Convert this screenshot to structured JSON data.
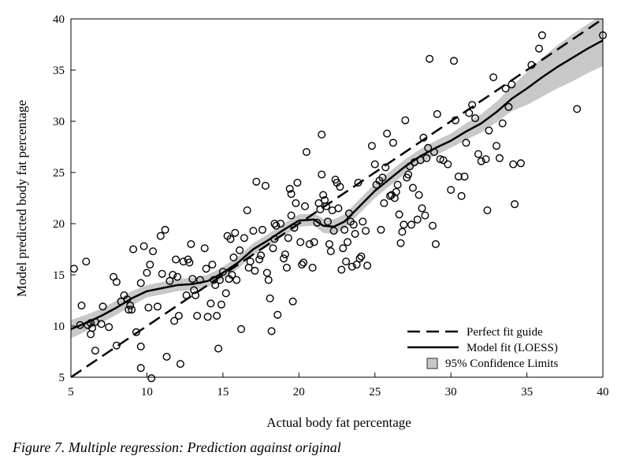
{
  "caption": "Figure 7. Multiple regression: Prediction against original",
  "chart_data": {
    "type": "scatter",
    "xlabel": "Actual body fat percentage",
    "ylabel": "Model predicted body fat percentage",
    "xlim": [
      5,
      40
    ],
    "ylim": [
      5,
      40
    ],
    "xticks": [
      5,
      10,
      15,
      20,
      25,
      30,
      35,
      40
    ],
    "yticks": [
      5,
      10,
      15,
      20,
      25,
      30,
      35,
      40
    ],
    "grid": false,
    "legend_position": "bottom-right",
    "legend": {
      "perfect_fit": "Perfect fit guide",
      "model_fit": "Model fit (LOESS)",
      "confidence": "95% Confidence Limits"
    },
    "colors": {
      "band": "#c8c8c8",
      "line": "#000000",
      "marker": "#000000"
    },
    "points": [
      [
        5.2,
        15.6
      ],
      [
        5.6,
        10.1
      ],
      [
        5.7,
        12.0
      ],
      [
        6.0,
        16.3
      ],
      [
        6.1,
        10.1
      ],
      [
        6.3,
        9.2
      ],
      [
        6.4,
        9.8
      ],
      [
        6.6,
        10.4
      ],
      [
        6.6,
        7.6
      ],
      [
        6.3,
        10.3
      ],
      [
        7.0,
        10.2
      ],
      [
        7.1,
        11.9
      ],
      [
        7.5,
        9.9
      ],
      [
        7.8,
        14.8
      ],
      [
        8.0,
        8.1
      ],
      [
        8.0,
        14.3
      ],
      [
        8.3,
        12.4
      ],
      [
        8.5,
        13.0
      ],
      [
        8.7,
        12.6
      ],
      [
        8.8,
        11.6
      ],
      [
        8.9,
        12.0
      ],
      [
        9.0,
        11.6
      ],
      [
        9.1,
        17.5
      ],
      [
        9.3,
        9.4
      ],
      [
        9.6,
        14.2
      ],
      [
        9.6,
        8.0
      ],
      [
        9.6,
        5.9
      ],
      [
        9.8,
        17.8
      ],
      [
        10.0,
        15.2
      ],
      [
        10.1,
        11.8
      ],
      [
        10.2,
        16.0
      ],
      [
        10.3,
        4.9
      ],
      [
        10.4,
        17.3
      ],
      [
        10.7,
        11.9
      ],
      [
        10.9,
        18.8
      ],
      [
        11.0,
        15.1
      ],
      [
        11.2,
        19.4
      ],
      [
        11.3,
        7.0
      ],
      [
        11.5,
        14.4
      ],
      [
        11.7,
        15.0
      ],
      [
        11.8,
        10.5
      ],
      [
        11.9,
        16.5
      ],
      [
        12.0,
        14.8
      ],
      [
        12.1,
        11.0
      ],
      [
        12.2,
        6.3
      ],
      [
        12.4,
        16.3
      ],
      [
        12.6,
        13.0
      ],
      [
        12.7,
        16.5
      ],
      [
        12.8,
        16.2
      ],
      [
        12.9,
        18.0
      ],
      [
        13.0,
        14.6
      ],
      [
        13.1,
        13.5
      ],
      [
        13.2,
        13.0
      ],
      [
        13.3,
        11.0
      ],
      [
        13.5,
        14.5
      ],
      [
        13.8,
        17.6
      ],
      [
        13.9,
        15.6
      ],
      [
        14.0,
        10.9
      ],
      [
        14.2,
        12.2
      ],
      [
        14.3,
        16.0
      ],
      [
        14.4,
        14.5
      ],
      [
        14.5,
        14.0
      ],
      [
        14.6,
        11.0
      ],
      [
        14.7,
        7.8
      ],
      [
        14.8,
        14.5
      ],
      [
        14.9,
        12.1
      ],
      [
        15.0,
        15.3
      ],
      [
        15.2,
        13.2
      ],
      [
        15.3,
        18.8
      ],
      [
        15.4,
        14.6
      ],
      [
        15.5,
        18.5
      ],
      [
        15.6,
        15.0
      ],
      [
        15.7,
        16.7
      ],
      [
        15.8,
        19.1
      ],
      [
        15.9,
        14.5
      ],
      [
        16.1,
        17.4
      ],
      [
        16.2,
        9.7
      ],
      [
        16.4,
        18.6
      ],
      [
        16.6,
        21.3
      ],
      [
        16.7,
        15.7
      ],
      [
        16.8,
        16.3
      ],
      [
        17.0,
        19.3
      ],
      [
        17.1,
        15.4
      ],
      [
        17.2,
        24.1
      ],
      [
        17.4,
        16.5
      ],
      [
        17.5,
        16.9
      ],
      [
        17.6,
        19.4
      ],
      [
        17.8,
        23.7
      ],
      [
        17.9,
        15.2
      ],
      [
        18.0,
        14.5
      ],
      [
        18.1,
        12.7
      ],
      [
        18.2,
        9.5
      ],
      [
        18.3,
        17.6
      ],
      [
        18.4,
        18.5
      ],
      [
        18.4,
        20.0
      ],
      [
        18.5,
        19.8
      ],
      [
        18.6,
        11.1
      ],
      [
        18.8,
        20.0
      ],
      [
        19.0,
        16.6
      ],
      [
        19.1,
        17.0
      ],
      [
        19.2,
        15.7
      ],
      [
        19.3,
        18.6
      ],
      [
        19.4,
        23.4
      ],
      [
        19.5,
        20.8
      ],
      [
        19.5,
        22.9
      ],
      [
        19.6,
        12.4
      ],
      [
        19.7,
        19.6
      ],
      [
        19.8,
        22.0
      ],
      [
        19.9,
        24.0
      ],
      [
        20.1,
        18.2
      ],
      [
        20.2,
        16.0
      ],
      [
        20.3,
        16.2
      ],
      [
        20.4,
        21.7
      ],
      [
        20.5,
        27.0
      ],
      [
        20.7,
        18.0
      ],
      [
        20.9,
        15.7
      ],
      [
        21.0,
        18.2
      ],
      [
        21.2,
        20.1
      ],
      [
        21.3,
        22.0
      ],
      [
        21.4,
        21.4
      ],
      [
        21.5,
        24.8
      ],
      [
        21.5,
        28.7
      ],
      [
        21.6,
        22.8
      ],
      [
        21.7,
        22.3
      ],
      [
        21.8,
        21.7
      ],
      [
        21.9,
        20.2
      ],
      [
        22.0,
        18.0
      ],
      [
        22.1,
        17.3
      ],
      [
        22.2,
        21.3
      ],
      [
        22.3,
        19.3
      ],
      [
        22.4,
        24.3
      ],
      [
        22.5,
        24.0
      ],
      [
        22.6,
        21.5
      ],
      [
        22.7,
        23.6
      ],
      [
        22.8,
        15.5
      ],
      [
        22.9,
        17.6
      ],
      [
        23.0,
        19.4
      ],
      [
        23.1,
        16.3
      ],
      [
        23.2,
        18.2
      ],
      [
        23.3,
        21.0
      ],
      [
        23.4,
        20.2
      ],
      [
        23.5,
        15.8
      ],
      [
        23.6,
        19.9
      ],
      [
        23.7,
        19.0
      ],
      [
        23.8,
        16.0
      ],
      [
        23.9,
        24.0
      ],
      [
        24.0,
        16.6
      ],
      [
        24.1,
        16.8
      ],
      [
        24.2,
        20.2
      ],
      [
        24.4,
        19.3
      ],
      [
        24.5,
        15.9
      ],
      [
        24.8,
        27.6
      ],
      [
        25.0,
        25.8
      ],
      [
        25.1,
        23.8
      ],
      [
        25.3,
        24.2
      ],
      [
        25.4,
        19.4
      ],
      [
        25.5,
        24.5
      ],
      [
        25.6,
        22.0
      ],
      [
        25.7,
        25.5
      ],
      [
        25.8,
        28.8
      ],
      [
        26.0,
        22.7
      ],
      [
        26.1,
        22.8
      ],
      [
        26.2,
        27.9
      ],
      [
        26.3,
        22.5
      ],
      [
        26.4,
        23.1
      ],
      [
        26.5,
        23.8
      ],
      [
        26.6,
        20.9
      ],
      [
        26.7,
        18.1
      ],
      [
        26.8,
        19.2
      ],
      [
        26.9,
        19.9
      ],
      [
        27.0,
        30.1
      ],
      [
        27.1,
        24.5
      ],
      [
        27.2,
        24.8
      ],
      [
        27.3,
        25.6
      ],
      [
        27.4,
        19.9
      ],
      [
        27.5,
        23.5
      ],
      [
        27.6,
        26.0
      ],
      [
        27.8,
        20.4
      ],
      [
        27.9,
        22.8
      ],
      [
        28.0,
        26.2
      ],
      [
        28.1,
        21.5
      ],
      [
        28.2,
        28.4
      ],
      [
        28.3,
        20.8
      ],
      [
        28.4,
        26.4
      ],
      [
        28.5,
        27.4
      ],
      [
        28.6,
        36.1
      ],
      [
        28.8,
        19.8
      ],
      [
        28.9,
        27.0
      ],
      [
        29.0,
        18.0
      ],
      [
        29.1,
        30.7
      ],
      [
        29.3,
        26.3
      ],
      [
        29.5,
        26.2
      ],
      [
        29.8,
        25.8
      ],
      [
        30.0,
        23.3
      ],
      [
        30.2,
        35.9
      ],
      [
        30.3,
        30.1
      ],
      [
        30.5,
        24.6
      ],
      [
        30.7,
        22.7
      ],
      [
        30.9,
        24.6
      ],
      [
        31.0,
        27.9
      ],
      [
        31.2,
        30.8
      ],
      [
        31.4,
        31.6
      ],
      [
        31.6,
        30.3
      ],
      [
        31.8,
        26.8
      ],
      [
        32.0,
        26.1
      ],
      [
        32.3,
        26.3
      ],
      [
        32.4,
        21.3
      ],
      [
        32.5,
        29.1
      ],
      [
        32.8,
        34.3
      ],
      [
        33.0,
        27.6
      ],
      [
        33.2,
        26.4
      ],
      [
        33.4,
        29.8
      ],
      [
        33.6,
        33.2
      ],
      [
        33.8,
        31.4
      ],
      [
        34.0,
        33.6
      ],
      [
        34.1,
        25.8
      ],
      [
        34.2,
        21.9
      ],
      [
        34.6,
        25.9
      ],
      [
        35.3,
        35.5
      ],
      [
        35.8,
        37.1
      ],
      [
        36.0,
        38.4
      ],
      [
        38.3,
        31.2
      ],
      [
        40.0,
        38.4
      ]
    ],
    "loess": [
      [
        5.0,
        9.7
      ],
      [
        6.0,
        10.3
      ],
      [
        7.0,
        11.0
      ],
      [
        8.0,
        11.8
      ],
      [
        9.0,
        12.7
      ],
      [
        10.0,
        13.4
      ],
      [
        11.0,
        13.7
      ],
      [
        12.0,
        14.0
      ],
      [
        13.0,
        14.1
      ],
      [
        14.0,
        14.4
      ],
      [
        15.0,
        15.2
      ],
      [
        16.0,
        16.2
      ],
      [
        17.0,
        17.5
      ],
      [
        18.0,
        18.4
      ],
      [
        19.0,
        19.4
      ],
      [
        20.0,
        20.3
      ],
      [
        21.0,
        20.4
      ],
      [
        21.6,
        19.8
      ],
      [
        22.3,
        19.7
      ],
      [
        23.0,
        20.2
      ],
      [
        24.0,
        21.7
      ],
      [
        25.0,
        23.2
      ],
      [
        26.0,
        24.4
      ],
      [
        27.0,
        25.6
      ],
      [
        28.0,
        26.6
      ],
      [
        29.0,
        27.4
      ],
      [
        30.0,
        28.1
      ],
      [
        31.0,
        29.0
      ],
      [
        32.0,
        29.8
      ],
      [
        33.0,
        30.9
      ],
      [
        34.0,
        32.2
      ],
      [
        35.0,
        33.2
      ],
      [
        36.0,
        34.3
      ],
      [
        37.0,
        35.3
      ],
      [
        38.0,
        36.2
      ],
      [
        39.0,
        37.1
      ],
      [
        40.0,
        37.9
      ]
    ],
    "band_upper": [
      [
        5.0,
        10.6
      ],
      [
        6.0,
        11.1
      ],
      [
        7.0,
        11.7
      ],
      [
        8.0,
        12.5
      ],
      [
        9.0,
        13.4
      ],
      [
        10.0,
        14.0
      ],
      [
        11.0,
        14.3
      ],
      [
        12.0,
        14.6
      ],
      [
        13.0,
        14.7
      ],
      [
        14.0,
        15.0
      ],
      [
        15.0,
        15.8
      ],
      [
        16.0,
        16.8
      ],
      [
        17.0,
        18.1
      ],
      [
        18.0,
        19.0
      ],
      [
        19.0,
        20.0
      ],
      [
        20.0,
        20.9
      ],
      [
        21.0,
        21.0
      ],
      [
        21.6,
        20.5
      ],
      [
        22.3,
        20.4
      ],
      [
        23.0,
        20.9
      ],
      [
        24.0,
        22.4
      ],
      [
        25.0,
        23.9
      ],
      [
        26.0,
        25.1
      ],
      [
        27.0,
        26.3
      ],
      [
        28.0,
        27.3
      ],
      [
        29.0,
        28.1
      ],
      [
        30.0,
        28.8
      ],
      [
        31.0,
        29.8
      ],
      [
        32.0,
        30.7
      ],
      [
        33.0,
        31.9
      ],
      [
        34.0,
        33.4
      ],
      [
        35.0,
        34.8
      ],
      [
        36.0,
        36.2
      ],
      [
        37.0,
        37.4
      ],
      [
        38.0,
        38.5
      ],
      [
        39.0,
        39.5
      ],
      [
        40.0,
        40.4
      ]
    ],
    "band_lower": [
      [
        5.0,
        8.8
      ],
      [
        6.0,
        9.5
      ],
      [
        7.0,
        10.3
      ],
      [
        8.0,
        11.1
      ],
      [
        9.0,
        12.0
      ],
      [
        10.0,
        12.8
      ],
      [
        11.0,
        13.1
      ],
      [
        12.0,
        13.4
      ],
      [
        13.0,
        13.5
      ],
      [
        14.0,
        13.8
      ],
      [
        15.0,
        14.6
      ],
      [
        16.0,
        15.6
      ],
      [
        17.0,
        16.9
      ],
      [
        18.0,
        17.8
      ],
      [
        19.0,
        18.8
      ],
      [
        20.0,
        19.7
      ],
      [
        21.0,
        19.8
      ],
      [
        21.6,
        19.1
      ],
      [
        22.3,
        19.0
      ],
      [
        23.0,
        19.5
      ],
      [
        24.0,
        21.0
      ],
      [
        25.0,
        22.5
      ],
      [
        26.0,
        23.7
      ],
      [
        27.0,
        24.9
      ],
      [
        28.0,
        25.9
      ],
      [
        29.0,
        26.7
      ],
      [
        30.0,
        27.4
      ],
      [
        31.0,
        28.2
      ],
      [
        32.0,
        28.9
      ],
      [
        33.0,
        29.9
      ],
      [
        34.0,
        31.0
      ],
      [
        35.0,
        31.6
      ],
      [
        36.0,
        32.4
      ],
      [
        37.0,
        33.2
      ],
      [
        38.0,
        33.9
      ],
      [
        39.0,
        34.7
      ],
      [
        40.0,
        35.4
      ]
    ],
    "perfect_fit_line": [
      [
        5,
        5
      ],
      [
        40,
        40
      ]
    ]
  }
}
